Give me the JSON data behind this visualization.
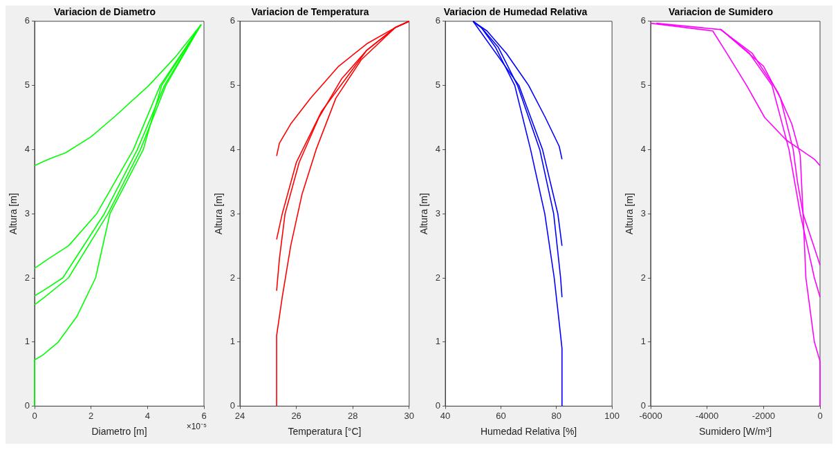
{
  "chart_data": [
    {
      "type": "line",
      "title": "Variacion de Diametro",
      "xlabel": "Diametro [m]",
      "ylabel": "Altura [m]",
      "annotations": [
        "×10⁻⁵"
      ],
      "xlim": [
        0,
        6
      ],
      "xticks": [
        0,
        2,
        4,
        6
      ],
      "ylim": [
        0,
        6
      ],
      "yticks": [
        0,
        1,
        2,
        3,
        4,
        5,
        6
      ],
      "grid": false,
      "legend": false,
      "series": [
        {
          "color": "#00ff00",
          "x": [
            0,
            0.5,
            1.1,
            2,
            2.8,
            4.05,
            5,
            5.9
          ],
          "values": [
            3.75,
            3.85,
            3.95,
            4.2,
            4.5,
            5,
            5.45,
            5.95
          ]
        },
        {
          "color": "#00ff00",
          "x": [
            0,
            0.5,
            1.2,
            2.2,
            3.5,
            4.45,
            5.9
          ],
          "values": [
            2.15,
            2.3,
            2.5,
            3,
            4,
            5,
            5.95
          ]
        },
        {
          "color": "#00ff00",
          "x": [
            0,
            0.3,
            1,
            2.47,
            3.64,
            4.6,
            5.9
          ],
          "values": [
            1.72,
            1.8,
            2,
            3,
            4,
            5,
            5.95
          ]
        },
        {
          "color": "#00ff00",
          "x": [
            0,
            0.3,
            1.2,
            2.6,
            3.75,
            4.65,
            5.9
          ],
          "values": [
            1.58,
            1.68,
            2,
            3,
            4,
            5,
            5.95
          ]
        },
        {
          "color": "#00ff00",
          "x": [
            0,
            0,
            0.3,
            0.84,
            1.5,
            2.16,
            2.67,
            3.85,
            4.5,
            5.9
          ],
          "values": [
            0,
            0.72,
            0.8,
            1,
            1.4,
            2,
            3,
            4,
            5,
            5.95
          ]
        }
      ]
    },
    {
      "type": "line",
      "title": "Variacion de Temperatura",
      "xlabel": "Temperatura [°C]",
      "ylabel": "Altura [m]",
      "xlim": [
        24,
        30
      ],
      "xticks": [
        24,
        26,
        28,
        30
      ],
      "ylim": [
        0,
        6
      ],
      "yticks": [
        0,
        1,
        2,
        3,
        4,
        5,
        6
      ],
      "grid": false,
      "legend": false,
      "series": [
        {
          "color": "#ff0000",
          "x": [
            25.3,
            25.4,
            25.8,
            26.5,
            27.5,
            28.5,
            29.5,
            30
          ],
          "values": [
            3.9,
            4.1,
            4.4,
            4.8,
            5.3,
            5.65,
            5.9,
            6
          ]
        },
        {
          "color": "#ff0000",
          "x": [
            25.3,
            25.4,
            25.6,
            26.1,
            26.8,
            27.6,
            28.5,
            29.5,
            30
          ],
          "values": [
            1.8,
            2.3,
            3,
            3.8,
            4.5,
            5.1,
            5.55,
            5.9,
            6
          ]
        },
        {
          "color": "#ff0000",
          "x": [
            25.3,
            25.5,
            26,
            26.9,
            28.5,
            29.5,
            30
          ],
          "values": [
            2.6,
            3,
            3.8,
            4.6,
            5.55,
            5.9,
            6
          ]
        },
        {
          "color": "#ff0000",
          "x": [
            25.3,
            25.3,
            25.5,
            25.8,
            26.2,
            26.7,
            27.4,
            28.3,
            29.5,
            30
          ],
          "values": [
            0,
            1.1,
            1.7,
            2.5,
            3.3,
            4,
            4.8,
            5.4,
            5.9,
            6
          ]
        }
      ]
    },
    {
      "type": "line",
      "title": "Variacion de Humedad Relativa",
      "xlabel": "Humedad Relativa [%]",
      "ylabel": "Altura [m]",
      "xlim": [
        40,
        100
      ],
      "xticks": [
        40,
        60,
        80,
        100
      ],
      "ylim": [
        0,
        6
      ],
      "yticks": [
        0,
        1,
        2,
        3,
        4,
        5,
        6
      ],
      "grid": false,
      "legend": false,
      "series": [
        {
          "color": "#0000ff",
          "x": [
            82,
            81,
            76,
            70,
            62,
            55,
            50
          ],
          "values": [
            3.85,
            4.05,
            4.5,
            5,
            5.5,
            5.85,
            6
          ]
        },
        {
          "color": "#0000ff",
          "x": [
            82,
            81.5,
            79,
            74,
            66,
            59,
            53,
            50
          ],
          "values": [
            1.7,
            2,
            3,
            4,
            5,
            5.6,
            5.9,
            6
          ]
        },
        {
          "color": "#0000ff",
          "x": [
            82,
            80.5,
            75,
            66.5,
            50
          ],
          "values": [
            2.5,
            3,
            4,
            5,
            6
          ]
        },
        {
          "color": "#0000ff",
          "x": [
            82,
            82,
            81,
            79.2,
            75.8,
            70.7,
            65,
            58,
            53,
            50
          ],
          "values": [
            0,
            0.9,
            1.3,
            2,
            3,
            4,
            5,
            5.6,
            5.9,
            6
          ]
        }
      ]
    },
    {
      "type": "line",
      "title": "Variacion de Sumidero",
      "xlabel": "Sumidero [W/m³]",
      "ylabel": "Altura [m]",
      "xlim": [
        -6000,
        0
      ],
      "xticks": [
        -6000,
        -4000,
        -2000,
        0
      ],
      "ylim": [
        0,
        6
      ],
      "yticks": [
        0,
        1,
        2,
        3,
        4,
        5,
        6
      ],
      "grid": false,
      "legend": false,
      "series": [
        {
          "color": "#ff00ff",
          "x": [
            0,
            -200,
            -500,
            -700,
            -1100,
            -1700,
            -2500,
            -3500,
            -5800
          ],
          "values": [
            1.7,
            2,
            2.6,
            3,
            4,
            5,
            5.5,
            5.87,
            5.97
          ]
        },
        {
          "color": "#ff00ff",
          "x": [
            0,
            -200,
            -700,
            -1200,
            -1960,
            -2600,
            -3300,
            -3800,
            -6000
          ],
          "values": [
            3.75,
            3.85,
            4,
            4.15,
            4.5,
            5,
            5.5,
            5.85,
            5.97
          ]
        },
        {
          "color": "#ff00ff",
          "x": [
            0,
            -300,
            -600,
            -800,
            -950,
            -1400,
            -2000,
            -3450
          ],
          "values": [
            2.2,
            2.6,
            3,
            3.5,
            4,
            4.8,
            5.3,
            5.85
          ]
        },
        {
          "color": "#ff00ff",
          "x": [
            0,
            0,
            -200,
            -500,
            -600,
            -700,
            -750,
            -1000,
            -1500,
            -2400,
            -3550
          ],
          "values": [
            0,
            0.7,
            1,
            2,
            3,
            3.9,
            4,
            4.4,
            4.9,
            5.5,
            5.88
          ]
        }
      ]
    }
  ]
}
